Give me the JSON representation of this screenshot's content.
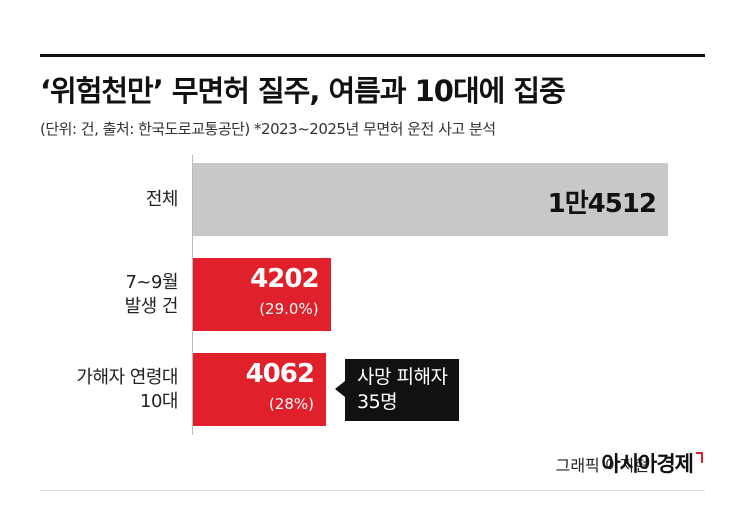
{
  "chart_data": {
    "type": "bar",
    "orientation": "horizontal",
    "title": "‘위험천만’ 무면허 질주, 여름과 10대에 집중",
    "subtitle": "(단위: 건, 출처: 한국도로교통공단)  *2023~2025년 무면허 운전 사고 분석",
    "categories": [
      "전체",
      "7~9월\n발생 건",
      "가해자 연령대\n10대"
    ],
    "values": [
      14512,
      4202,
      4062
    ],
    "value_labels": [
      "1만4512",
      "4202",
      "4062"
    ],
    "percents": [
      null,
      29.0,
      28
    ],
    "percent_labels": [
      null,
      "(29.0%)",
      "(28%)"
    ],
    "colors": [
      "#c8c8c8",
      "#e0202a",
      "#e0202a"
    ],
    "annotation": "사망 피해자\n35명",
    "credit": "그래픽 이지현",
    "brand": "아시아경제"
  }
}
